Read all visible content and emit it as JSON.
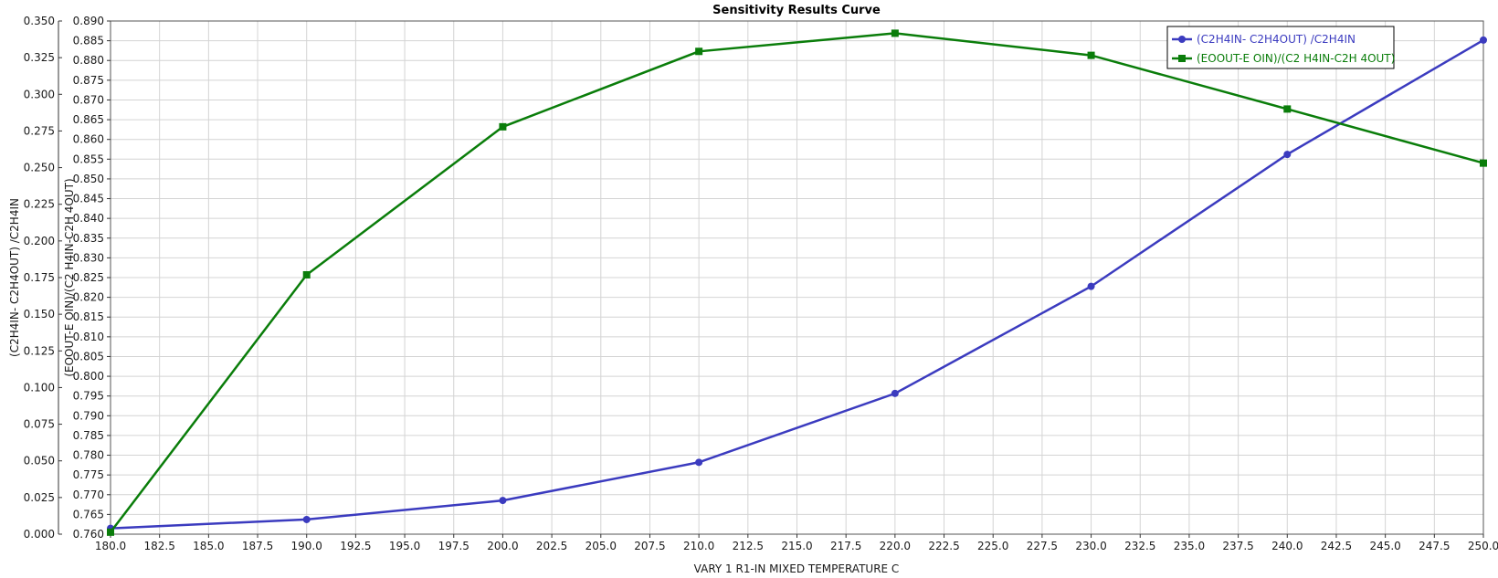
{
  "chart_data": {
    "type": "line",
    "title": "Sensitivity Results Curve",
    "xlabel": "VARY   1 R1-IN MIXED TEMPERATURE C",
    "ylabel_left": "(C2H4IN- C2H4OUT) /C2H4IN",
    "ylabel_right": "(EOOUT-E OIN)/(C2 H4IN-C2H 4OUT)",
    "xlim": [
      180,
      250
    ],
    "x_ticks": [
      "180.0",
      "182.5",
      "185.0",
      "187.5",
      "190.0",
      "192.5",
      "195.0",
      "197.5",
      "200.0",
      "202.5",
      "205.0",
      "207.5",
      "210.0",
      "212.5",
      "215.0",
      "217.5",
      "220.0",
      "222.5",
      "225.0",
      "227.5",
      "230.0",
      "232.5",
      "235.0",
      "237.5",
      "240.0",
      "242.5",
      "245.0",
      "247.5",
      "250.0"
    ],
    "ylim_left": [
      0.0,
      0.35
    ],
    "y_ticks_left": [
      "0.000",
      "0.025",
      "0.050",
      "0.075",
      "0.100",
      "0.125",
      "0.150",
      "0.175",
      "0.200",
      "0.225",
      "0.250",
      "0.275",
      "0.300",
      "0.325",
      "0.350"
    ],
    "ylim_right": [
      0.76,
      0.89
    ],
    "y_ticks_right": [
      "0.760",
      "0.765",
      "0.770",
      "0.775",
      "0.780",
      "0.785",
      "0.790",
      "0.795",
      "0.800",
      "0.805",
      "0.810",
      "0.815",
      "0.820",
      "0.825",
      "0.830",
      "0.835",
      "0.840",
      "0.845",
      "0.850",
      "0.855",
      "0.860",
      "0.865",
      "0.870",
      "0.875",
      "0.880",
      "0.885",
      "0.890"
    ],
    "grid": true,
    "legend_position": "top-right",
    "x": [
      180,
      190,
      200,
      210,
      220,
      230,
      240,
      250
    ],
    "series": [
      {
        "name": "(C2H4IN- C2H4OUT) /C2H4IN",
        "axis": "left",
        "marker": "circle",
        "color": "#3b3bbf",
        "values": [
          0.004,
          0.01,
          0.023,
          0.049,
          0.096,
          0.169,
          0.259,
          0.337
        ]
      },
      {
        "name": "(EOOUT-E OIN)/(C2 H4IN-C2H 4OUT)",
        "axis": "right",
        "marker": "square",
        "color": "#0a7d0a",
        "values": [
          0.7605,
          0.8257,
          0.8632,
          0.8823,
          0.8869,
          0.8813,
          0.8677,
          0.854
        ]
      }
    ]
  }
}
